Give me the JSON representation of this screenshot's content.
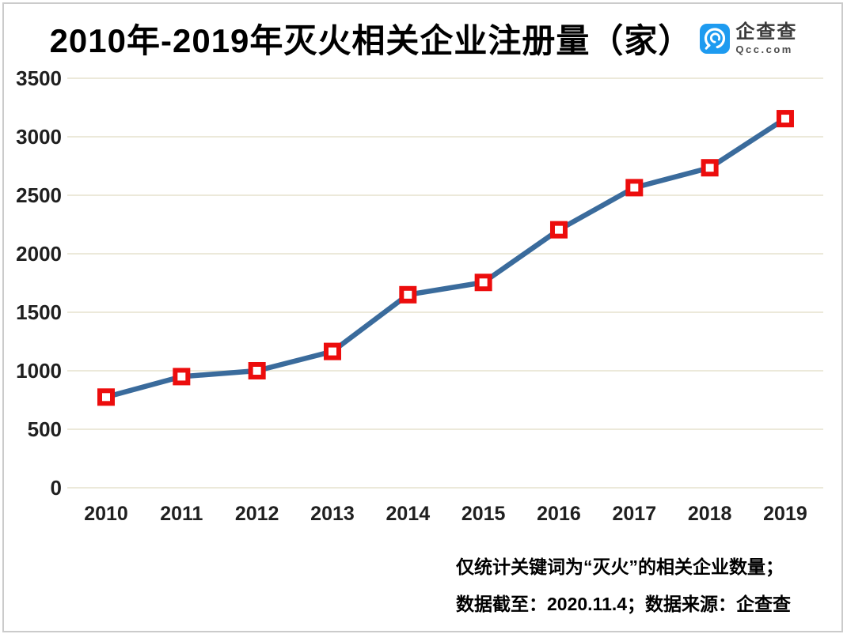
{
  "title": "2010年-2019年灭火相关企业注册量（家）",
  "logo": {
    "name": "企查查",
    "domain": "Qcc.com",
    "brand_color": "#1E9BF0",
    "icon": "qcc-magnifier-icon"
  },
  "chart_data": {
    "type": "line",
    "title": "2010年-2019年灭火相关企业注册量（家）",
    "categories": [
      "2010",
      "2011",
      "2012",
      "2013",
      "2014",
      "2015",
      "2016",
      "2017",
      "2018",
      "2019"
    ],
    "series": [
      {
        "name": "灭火相关企业注册量",
        "values": [
          775,
          950,
          1000,
          1165,
          1650,
          1755,
          2205,
          2565,
          2735,
          3155
        ]
      }
    ],
    "xlabel": "",
    "ylabel": "",
    "ylim": [
      0,
      3500
    ],
    "y_ticks": [
      0,
      500,
      1000,
      1500,
      2000,
      2500,
      3000,
      3500
    ],
    "grid": "horizontal",
    "legend": "none",
    "line_color": "#3A6B9C",
    "marker_shape": "square",
    "marker_fill": "#FFFFFF",
    "marker_stroke": "#EC0D0D",
    "gridline_color": "#ECE9DA",
    "tick_label_color": "#1f1f1f"
  },
  "footer": {
    "line1": "仅统计关键词为“灭火”的相关企业数量；",
    "line2": "数据截至：2020.11.4；数据来源：企查查"
  }
}
